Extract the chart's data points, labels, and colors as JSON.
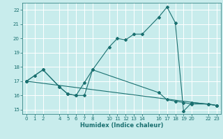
{
  "xlabel": "Humidex (Indice chaleur)",
  "bg_color": "#c8ecec",
  "line_color": "#1a7070",
  "grid_color": "#ffffff",
  "xlim": [
    -0.5,
    23.5
  ],
  "ylim": [
    14.7,
    22.5
  ],
  "xticks": [
    0,
    1,
    2,
    4,
    5,
    6,
    7,
    8,
    10,
    11,
    12,
    13,
    14,
    16,
    17,
    18,
    19,
    20,
    22,
    23
  ],
  "yticks": [
    15,
    16,
    17,
    18,
    19,
    20,
    21,
    22
  ],
  "series1": [
    [
      0,
      17.0
    ],
    [
      1,
      17.4
    ],
    [
      2,
      17.8
    ],
    [
      4,
      16.6
    ],
    [
      5,
      16.1
    ],
    [
      6,
      16.0
    ],
    [
      7,
      16.0
    ],
    [
      8,
      17.8
    ],
    [
      10,
      19.4
    ],
    [
      11,
      20.0
    ],
    [
      12,
      19.9
    ],
    [
      13,
      20.3
    ],
    [
      14,
      20.3
    ],
    [
      16,
      21.5
    ],
    [
      17,
      22.2
    ],
    [
      18,
      21.1
    ],
    [
      19,
      14.9
    ],
    [
      20,
      15.5
    ],
    [
      22,
      15.4
    ],
    [
      23,
      15.3
    ]
  ],
  "series2": [
    [
      0,
      17.0
    ],
    [
      2,
      17.8
    ],
    [
      4,
      16.6
    ],
    [
      5,
      16.1
    ],
    [
      6,
      16.0
    ],
    [
      7,
      16.9
    ],
    [
      8,
      17.8
    ],
    [
      16,
      16.2
    ],
    [
      17,
      15.7
    ],
    [
      18,
      15.6
    ],
    [
      19,
      15.5
    ],
    [
      20,
      15.4
    ],
    [
      22,
      15.4
    ],
    [
      23,
      15.3
    ]
  ],
  "series3": [
    [
      0,
      17.0
    ],
    [
      23,
      15.3
    ]
  ]
}
